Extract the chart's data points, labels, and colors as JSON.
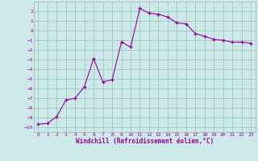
{
  "x": [
    0,
    1,
    2,
    3,
    4,
    5,
    6,
    7,
    8,
    9,
    10,
    11,
    12,
    13,
    14,
    15,
    16,
    17,
    18,
    19,
    20,
    21,
    22,
    23
  ],
  "y": [
    -9.7,
    -9.6,
    -8.9,
    -7.2,
    -7.0,
    -5.8,
    -2.9,
    -5.3,
    -5.1,
    -1.2,
    -1.7,
    2.3,
    1.8,
    1.7,
    1.4,
    0.8,
    0.7,
    -0.3,
    -0.6,
    -0.9,
    -1.0,
    -1.2,
    -1.2,
    -1.3
  ],
  "xlabel": "Windchill (Refroidissement éolien,°C)",
  "xlim": [
    -0.5,
    23.5
  ],
  "ylim": [
    -10.5,
    3.0
  ],
  "yticks": [
    2,
    1,
    0,
    -1,
    -2,
    -3,
    -4,
    -5,
    -6,
    -7,
    -8,
    -9,
    -10
  ],
  "xticks": [
    0,
    1,
    2,
    3,
    4,
    5,
    6,
    7,
    8,
    9,
    10,
    11,
    12,
    13,
    14,
    15,
    16,
    17,
    18,
    19,
    20,
    21,
    22,
    23
  ],
  "line_color": "#990099",
  "marker": "+",
  "bg_color": "#cce8e8",
  "grid_color": "#99ccbb",
  "xlabel_color": "#990099",
  "tick_color": "#990099",
  "font": "monospace",
  "tick_fontsize": 4.5,
  "xlabel_fontsize": 5.5
}
